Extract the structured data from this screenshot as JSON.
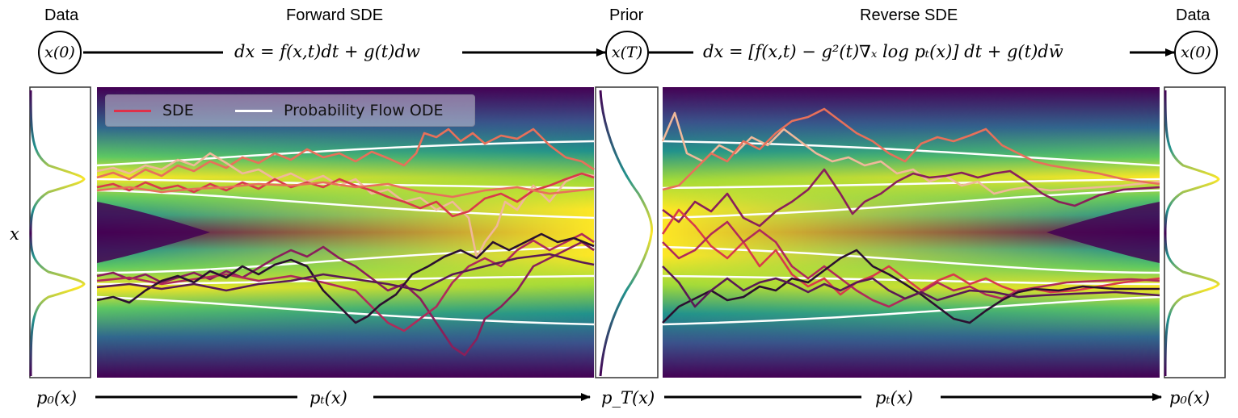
{
  "headers": {
    "data_left": "Data",
    "forward": "Forward SDE",
    "prior": "Prior",
    "reverse": "Reverse SDE",
    "data_right": "Data"
  },
  "nodes": {
    "x0_left": "x(0)",
    "xT": "x(T)",
    "x0_right": "x(0)"
  },
  "equations": {
    "forward": "dx = f(x,t)dt + g(t)dw",
    "reverse": "dx = [f(x,t) − g²(t)∇ₓ log pₜ(x)] dt + g(t)dw̄"
  },
  "axis": {
    "ylabel": "x"
  },
  "bottom_labels": {
    "p0_left": "p₀(x)",
    "pt_forward": "pₜ(x)",
    "pT": "p_T(x)",
    "pt_reverse": "pₜ(x)",
    "p0_right": "p₀(x)"
  },
  "legend": {
    "sde": "SDE",
    "ode": "Probability Flow ODE",
    "sde_color": "#e0304a",
    "ode_color": "#ffffff"
  },
  "colors": {
    "viridis_low": "#440154",
    "viridis_mid": "#21918c",
    "viridis_high": "#fde725"
  }
}
